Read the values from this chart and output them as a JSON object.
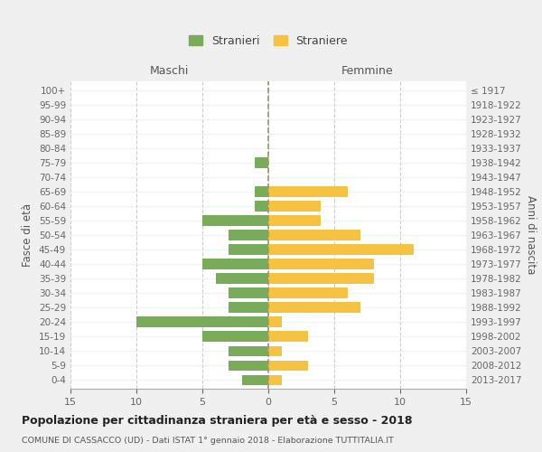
{
  "age_groups": [
    "0-4",
    "5-9",
    "10-14",
    "15-19",
    "20-24",
    "25-29",
    "30-34",
    "35-39",
    "40-44",
    "45-49",
    "50-54",
    "55-59",
    "60-64",
    "65-69",
    "70-74",
    "75-79",
    "80-84",
    "85-89",
    "90-94",
    "95-99",
    "100+"
  ],
  "birth_years": [
    "2013-2017",
    "2008-2012",
    "2003-2007",
    "1998-2002",
    "1993-1997",
    "1988-1992",
    "1983-1987",
    "1978-1982",
    "1973-1977",
    "1968-1972",
    "1963-1967",
    "1958-1962",
    "1953-1957",
    "1948-1952",
    "1943-1947",
    "1938-1942",
    "1933-1937",
    "1928-1932",
    "1923-1927",
    "1918-1922",
    "≤ 1917"
  ],
  "maschi": [
    2,
    3,
    3,
    5,
    10,
    3,
    3,
    4,
    5,
    3,
    3,
    5,
    1,
    1,
    0,
    1,
    0,
    0,
    0,
    0,
    0
  ],
  "femmine": [
    1,
    3,
    1,
    3,
    1,
    7,
    6,
    8,
    8,
    11,
    7,
    4,
    4,
    6,
    0,
    0,
    0,
    0,
    0,
    0,
    0
  ],
  "maschi_color": "#7aab5a",
  "femmine_color": "#f5c242",
  "background_color": "#f0f0f0",
  "plot_bg_color": "#ffffff",
  "grid_color": "#cccccc",
  "title": "Popolazione per cittadinanza straniera per età e sesso - 2018",
  "subtitle": "COMUNE DI CASSACCO (UD) - Dati ISTAT 1° gennaio 2018 - Elaborazione TUTTITALIA.IT",
  "xlabel_left": "Maschi",
  "xlabel_right": "Femmine",
  "ylabel_left": "Fasce di età",
  "ylabel_right": "Anni di nascita",
  "legend_stranieri": "Stranieri",
  "legend_straniere": "Straniere",
  "xlim": 15
}
